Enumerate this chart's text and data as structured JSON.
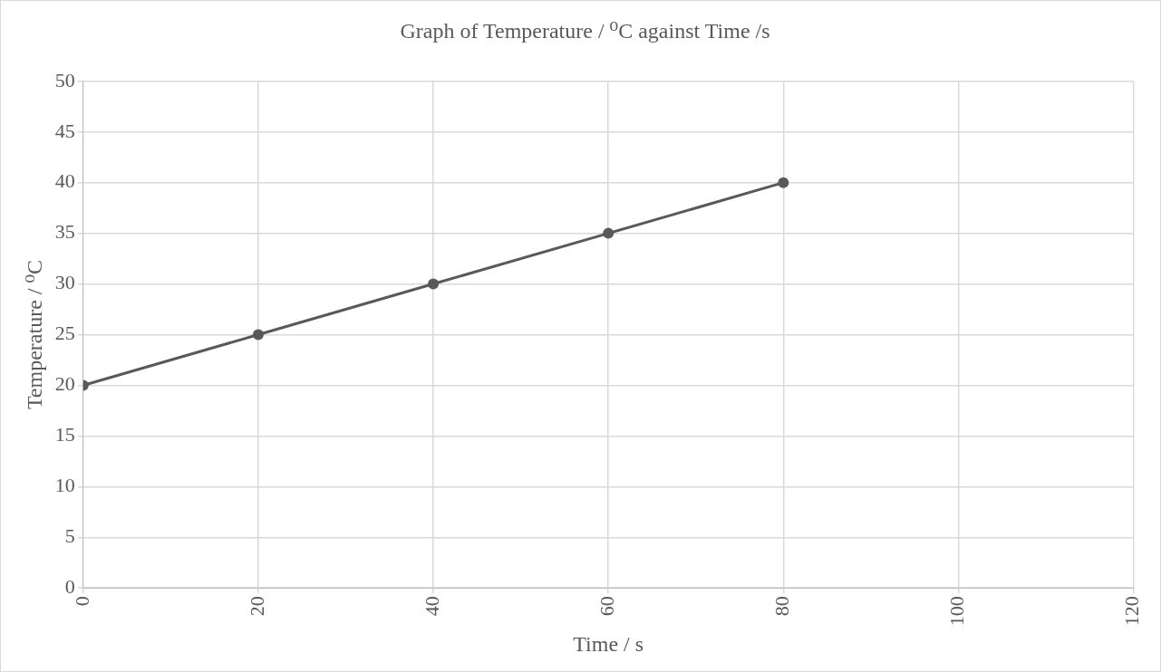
{
  "chart_data": {
    "type": "line",
    "title": "Graph of Temperature / ⁰C against Time /s",
    "xlabel": "Time / s",
    "ylabel": "Temperature / ⁰C",
    "x": [
      0,
      20,
      40,
      60,
      80
    ],
    "series": [
      {
        "color": "#595959",
        "values": [
          20,
          25,
          30,
          35,
          40
        ]
      }
    ],
    "xlim": [
      0,
      120
    ],
    "xticks": [
      0,
      20,
      40,
      60,
      80,
      100,
      120
    ],
    "ylim": [
      0,
      50
    ],
    "yticks": [
      0,
      5,
      10,
      15,
      20,
      25,
      30,
      35,
      40,
      45,
      50
    ],
    "grid": true,
    "marker": "circle",
    "line_style": "solid",
    "legend": false
  }
}
